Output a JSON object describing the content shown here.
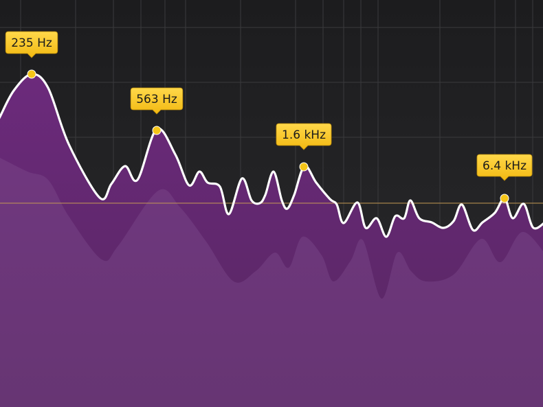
{
  "peak_labels": [
    "235 Hz",
    "563 Hz",
    "1.6 kHz",
    "6.4 kHz"
  ]
}
